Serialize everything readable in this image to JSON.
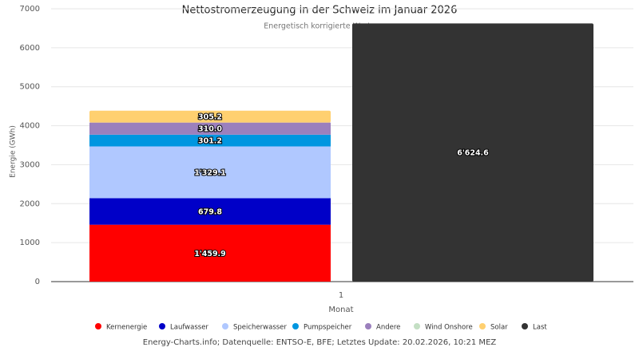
{
  "chart_data": {
    "type": "bar",
    "title": "Nettostromerzeugung in der Schweiz im Januar 2026",
    "subtitle": "Energetisch korrigierte Werte",
    "x_label": "Monat",
    "y_label": "Energie (GWh)",
    "footer": "Energy-Charts.info; Datenquelle: ENTSO-E, BFE; Letztes Update: 20.02.2026, 10:21 MEZ",
    "categories": [
      "1"
    ],
    "series": [
      {
        "name": "Kernenergie",
        "color": "#ff0000",
        "values": [
          1459.9
        ],
        "value_labels": [
          "1'459.9"
        ]
      },
      {
        "name": "Laufwasser",
        "color": "#0000c8",
        "values": [
          679.8
        ]
      },
      {
        "name": "Speicherwasser",
        "color": "#b0c8ff",
        "values": [
          1329.1
        ],
        "value_labels": [
          "1'329.1"
        ]
      },
      {
        "name": "Pumpspeicher",
        "color": "#0096e0",
        "values": [
          301.2
        ]
      },
      {
        "name": "Andere",
        "color": "#9b80bd",
        "values": [
          310
        ],
        "value_labels": [
          "310.0"
        ]
      },
      {
        "name": "Wind Onshore",
        "color": "#c4dfc4",
        "values": [
          0
        ]
      },
      {
        "name": "Solar",
        "color": "#ffd070",
        "values": [
          305.2
        ]
      },
      {
        "name": "Last",
        "color": "#333333",
        "values": [
          6624.6
        ],
        "value_labels": [
          "6'624.6"
        ]
      }
    ],
    "ylim": [
      0,
      7000
    ],
    "yticks": [
      0,
      1000,
      2000,
      3000,
      4000,
      5000,
      6000,
      7000
    ],
    "grid": true
  }
}
